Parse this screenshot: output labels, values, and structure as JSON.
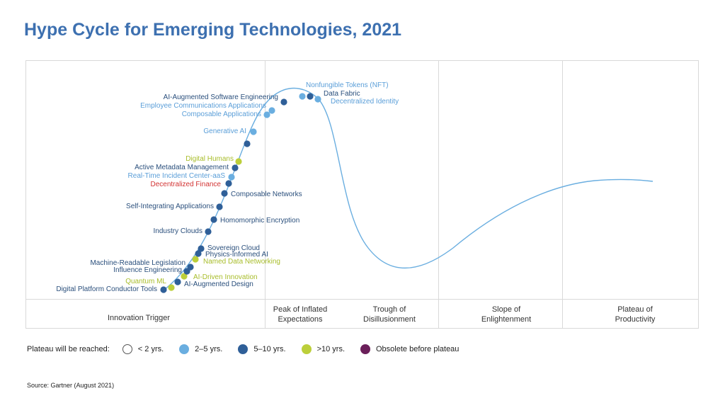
{
  "title": "Hype Cycle for Emerging Technologies, 2021",
  "chart_data": {
    "type": "scatter",
    "title": "Hype Cycle for Emerging Technologies, 2021",
    "phases": [
      "Innovation Trigger",
      "Peak of Inflated Expectations",
      "Trough of Disillusionment",
      "Slope of Enlightenment",
      "Plateau of Productivity"
    ],
    "colors": {
      "lt2": "#ffffff",
      "y2to5": "#6aaee0",
      "y5to10": "#2f5f98",
      "gt10": "#bccf3a",
      "obsolete": "#6b1f5a",
      "curve": "#6aaee0",
      "label_y2to5": "#5a9ed8",
      "label_y5to10": "#2a4f7c",
      "label_gt10": "#a8bd2a",
      "label_highlight": "#d23333"
    },
    "technologies": [
      {
        "name": "Digital Platform Conductor Tools",
        "plateau": "5–10 yrs."
      },
      {
        "name": "Quantum ML",
        "plateau": ">10 yrs."
      },
      {
        "name": "AI-Augmented Design",
        "plateau": "5–10 yrs."
      },
      {
        "name": "AI-Driven Innovation",
        "plateau": ">10 yrs."
      },
      {
        "name": "Influence Engineering",
        "plateau": "5–10 yrs."
      },
      {
        "name": "Machine-Readable Legislation",
        "plateau": "5–10 yrs."
      },
      {
        "name": "Named Data Networking",
        "plateau": ">10 yrs."
      },
      {
        "name": "Physics-Informed AI",
        "plateau": "5–10 yrs."
      },
      {
        "name": "Sovereign Cloud",
        "plateau": "5–10 yrs."
      },
      {
        "name": "Industry Clouds",
        "plateau": "5–10 yrs."
      },
      {
        "name": "Homomorphic Encryption",
        "plateau": "5–10 yrs."
      },
      {
        "name": "Self-Integrating Applications",
        "plateau": "5–10 yrs."
      },
      {
        "name": "Composable Networks",
        "plateau": "5–10 yrs."
      },
      {
        "name": "Decentralized Finance",
        "plateau": "5–10 yrs."
      },
      {
        "name": "Real-Time Incident Center-aaS",
        "plateau": "2–5 yrs."
      },
      {
        "name": "Active Metadata Management",
        "plateau": "5–10 yrs."
      },
      {
        "name": "Digital Humans",
        "plateau": ">10 yrs."
      },
      {
        "name": "",
        "plateau": "5–10 yrs."
      },
      {
        "name": "Generative AI",
        "plateau": "2–5 yrs."
      },
      {
        "name": "Composable Applications",
        "plateau": "2–5 yrs."
      },
      {
        "name": "Employee Communications Applications",
        "plateau": "2–5 yrs."
      },
      {
        "name": "AI-Augmented Software Engineering",
        "plateau": "5–10 yrs."
      },
      {
        "name": "Nonfungible Tokens (NFT)",
        "plateau": "2–5 yrs."
      },
      {
        "name": "Data Fabric",
        "plateau": "5–10 yrs."
      },
      {
        "name": "Decentralized Identity",
        "plateau": "2–5 yrs."
      }
    ]
  },
  "legend": {
    "label": "Plateau will be reached:",
    "items": [
      {
        "text": "< 2 yrs."
      },
      {
        "text": "2–5 yrs."
      },
      {
        "text": "5–10 yrs."
      },
      {
        "text": ">10 yrs."
      },
      {
        "text": "Obsolete before plateau"
      }
    ]
  },
  "source": "Source: Gartner (August 2021)"
}
